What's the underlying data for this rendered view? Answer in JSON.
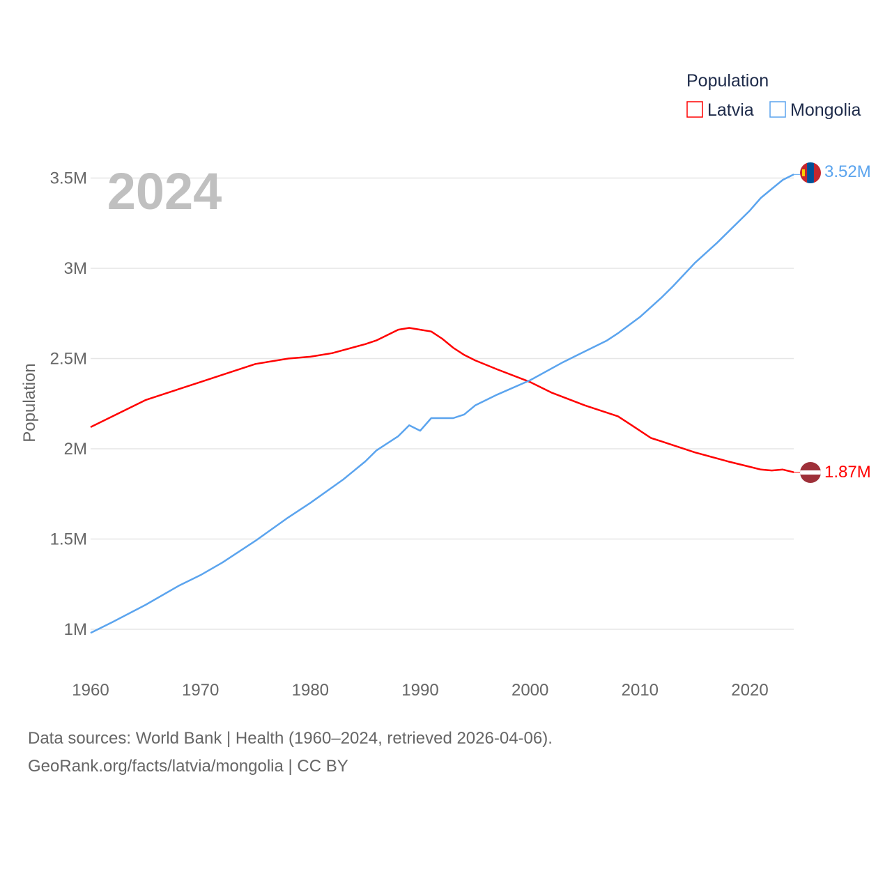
{
  "chart_data": {
    "type": "line",
    "title": "",
    "xlabel": "",
    "ylabel": "Population",
    "xlim": [
      1960,
      2024
    ],
    "ylim": [
      0.75,
      3.7
    ],
    "y_ticks": [
      1,
      1.5,
      2,
      2.5,
      3,
      3.5
    ],
    "y_tick_labels": [
      "1M",
      "1.5M",
      "2M",
      "2.5M",
      "3M",
      "3.5M"
    ],
    "x_ticks": [
      1960,
      1970,
      1980,
      1990,
      2000,
      2010,
      2020
    ],
    "x_tick_labels": [
      "1960",
      "1970",
      "1980",
      "1990",
      "2000",
      "2010",
      "2020"
    ],
    "grid": true,
    "year_label": "2024",
    "legend": {
      "title": "Population",
      "placement": "top-right"
    },
    "series": [
      {
        "name": "Latvia",
        "color": "#ff0000",
        "end_label": "1.87M",
        "x": [
          1960,
          1962,
          1965,
          1967,
          1970,
          1972,
          1975,
          1978,
          1980,
          1982,
          1985,
          1986,
          1988,
          1989,
          1990,
          1991,
          1992,
          1993,
          1994,
          1995,
          1997,
          2000,
          2002,
          2005,
          2007,
          2008,
          2009,
          2010,
          2011,
          2012,
          2015,
          2018,
          2020,
          2021,
          2022,
          2023,
          2024
        ],
        "values": [
          2.12,
          2.18,
          2.27,
          2.31,
          2.37,
          2.41,
          2.47,
          2.5,
          2.51,
          2.53,
          2.58,
          2.6,
          2.66,
          2.67,
          2.66,
          2.65,
          2.61,
          2.56,
          2.52,
          2.49,
          2.44,
          2.37,
          2.31,
          2.24,
          2.2,
          2.18,
          2.14,
          2.1,
          2.06,
          2.04,
          1.98,
          1.93,
          1.9,
          1.885,
          1.88,
          1.885,
          1.87
        ]
      },
      {
        "name": "Mongolia",
        "color": "#5ba4ee",
        "end_label": "3.52M",
        "x": [
          1960,
          1962,
          1965,
          1968,
          1970,
          1972,
          1975,
          1978,
          1980,
          1983,
          1985,
          1986,
          1988,
          1989,
          1990,
          1991,
          1992,
          1993,
          1994,
          1995,
          1997,
          2000,
          2003,
          2005,
          2007,
          2008,
          2010,
          2012,
          2013,
          2015,
          2017,
          2020,
          2021,
          2022,
          2023,
          2024
        ],
        "values": [
          0.98,
          1.04,
          1.135,
          1.24,
          1.3,
          1.37,
          1.49,
          1.62,
          1.7,
          1.83,
          1.93,
          1.99,
          2.07,
          2.13,
          2.1,
          2.17,
          2.17,
          2.17,
          2.19,
          2.24,
          2.3,
          2.38,
          2.48,
          2.54,
          2.6,
          2.64,
          2.73,
          2.84,
          2.9,
          3.03,
          3.14,
          3.32,
          3.39,
          3.44,
          3.49,
          3.52
        ]
      }
    ]
  },
  "footer": {
    "line1": "Data sources: World Bank | Health (1960–2024, retrieved 2026-04-06).",
    "line2": "GeoRank.org/facts/latvia/mongolia | CC BY"
  }
}
